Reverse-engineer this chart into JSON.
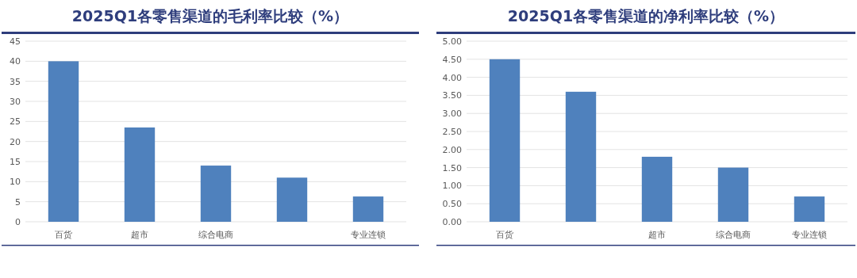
{
  "chart_data": [
    {
      "type": "bar",
      "title": "2025Q1各零售渠道的毛利率比较（%）",
      "categories": [
        "百货",
        "超市",
        "综合电商",
        null,
        "专业连锁"
      ],
      "values": [
        40,
        23.5,
        14,
        11,
        6.3
      ],
      "color": "#4f81bd",
      "ylim": [
        0,
        45
      ],
      "yticks": [
        0,
        5,
        10,
        15,
        20,
        25,
        30,
        35,
        40,
        45
      ],
      "grid": "y"
    },
    {
      "type": "bar",
      "title": "2025Q1各零售渠道的净利率比较（%）",
      "categories": [
        "百货",
        null,
        "超市",
        "综合电商",
        "专业连锁"
      ],
      "values": [
        4.5,
        3.6,
        1.8,
        1.5,
        0.7
      ],
      "color": "#4f81bd",
      "ylim": [
        0,
        5
      ],
      "yticks": [
        {
          "value": 0,
          "label": "0.00"
        },
        {
          "value": 0.5,
          "label": "0.50"
        },
        {
          "value": 1,
          "label": "1.00"
        },
        {
          "value": 1.5,
          "label": "1.50"
        },
        {
          "value": 2,
          "label": "2.00"
        },
        {
          "value": 2.5,
          "label": "2.50"
        },
        {
          "value": 3,
          "label": "3.00"
        },
        {
          "value": 3.5,
          "label": "3.50"
        },
        {
          "value": 4,
          "label": "4.00"
        },
        {
          "value": 4.5,
          "label": "4.50"
        },
        {
          "value": 5,
          "label": "5.00"
        }
      ],
      "grid": "y"
    }
  ]
}
